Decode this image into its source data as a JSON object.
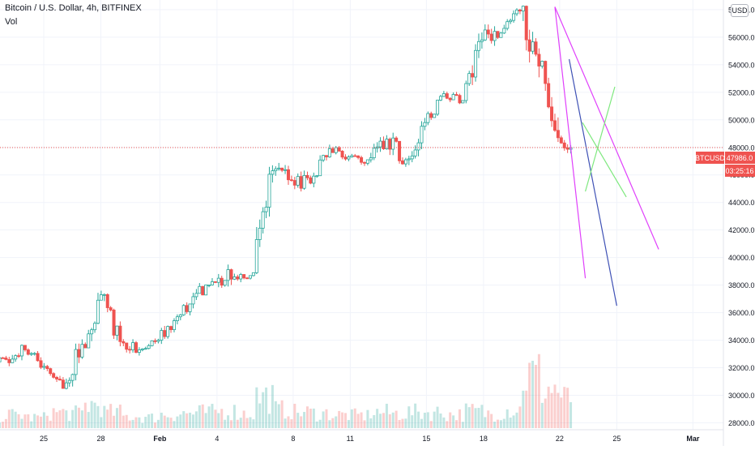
{
  "header": {
    "title": "Bitcoin / U.S. Dollar, 4h, BITFINEX",
    "indicator": "Vol",
    "currency_button": "USD"
  },
  "price_tag": {
    "symbol": "BTCUSD",
    "price": "47986.0",
    "countdown": "03:25:16",
    "color": "#ef5350"
  },
  "colors": {
    "up": "#26a69a",
    "down": "#ef5350",
    "grid": "#f0f3fa",
    "axis_text": "#131722"
  },
  "chart_data": {
    "type": "candlestick",
    "title": "Bitcoin / U.S. Dollar, 4h, BITFINEX",
    "ylim": [
      27500,
      58700
    ],
    "y_ticks": [
      28000,
      30000,
      32000,
      34000,
      36000,
      38000,
      40000,
      42000,
      44000,
      46000,
      48000,
      50000,
      52000,
      54000,
      56000,
      58000
    ],
    "y_tick_labels": [
      "28000.0",
      "30000.0",
      "32000.0",
      "34000.0",
      "36000.0",
      "38000.0",
      "40000.0",
      "42000.0",
      "44000.0",
      "46000.0",
      "48000.0",
      "50000.0",
      "52000.0",
      "54000.0",
      "56000.0",
      "58000.0"
    ],
    "x_range": [
      0,
      43.5
    ],
    "x_ticks": [
      {
        "day": 3.9,
        "label": "25"
      },
      {
        "day": 6.9,
        "label": "28"
      },
      {
        "day": 10.0,
        "label": "Feb"
      },
      {
        "day": 13.0,
        "label": "4"
      },
      {
        "day": 17.0,
        "label": "8"
      },
      {
        "day": 20.0,
        "label": "11"
      },
      {
        "day": 24.0,
        "label": "15"
      },
      {
        "day": 27.0,
        "label": "18"
      },
      {
        "day": 31.0,
        "label": "22"
      },
      {
        "day": 34.0,
        "label": "25"
      },
      {
        "day": 38.0,
        "label": "Mar"
      }
    ],
    "grid": true,
    "last_price": 47986.0,
    "candles_daily_ohlc": [
      [
        31500,
        32700,
        31600,
        32300
      ],
      [
        32300,
        33300,
        31800,
        32600
      ],
      [
        32600,
        34600,
        31700,
        33300
      ],
      [
        33300,
        33600,
        31300,
        32100
      ],
      [
        32100,
        32400,
        30200,
        30500
      ],
      [
        30500,
        34300,
        30300,
        33700
      ],
      [
        33700,
        38500,
        33500,
        37300
      ],
      [
        37300,
        37400,
        33400,
        33900
      ],
      [
        33900,
        34800,
        32600,
        33300
      ],
      [
        33300,
        34200,
        32800,
        34000
      ],
      [
        34000,
        36200,
        33300,
        35700
      ],
      [
        35700,
        37900,
        35000,
        37400
      ],
      [
        37400,
        38600,
        36300,
        38200
      ],
      [
        38200,
        41000,
        37200,
        38600
      ],
      [
        38600,
        39400,
        37400,
        38900
      ],
      [
        38900,
        46700,
        38800,
        46300
      ],
      [
        46300,
        48200,
        45000,
        45600
      ],
      [
        45600,
        47200,
        43800,
        45400
      ],
      [
        45400,
        48200,
        45100,
        47900
      ],
      [
        47900,
        48100,
        46300,
        47300
      ],
      [
        47300,
        48300,
        46500,
        47100
      ],
      [
        47100,
        49500,
        46200,
        48600
      ],
      [
        48600,
        49300,
        45600,
        47100
      ],
      [
        47100,
        50700,
        46700,
        49800
      ],
      [
        49800,
        52100,
        49200,
        51900
      ],
      [
        51900,
        52500,
        50900,
        51400
      ],
      [
        51400,
        56800,
        51200,
        55800
      ],
      [
        55800,
        57500,
        53600,
        56300
      ],
      [
        56300,
        58400,
        55700,
        57900
      ],
      [
        57900,
        58300,
        47600,
        53900
      ],
      [
        53900,
        54300,
        45000,
        48700
      ],
      [
        48700,
        49700,
        46800,
        47986
      ]
    ],
    "volume_relative": [
      0.2,
      0.22,
      0.25,
      0.2,
      0.3,
      0.28,
      0.45,
      0.3,
      0.22,
      0.2,
      0.26,
      0.28,
      0.3,
      0.32,
      0.28,
      0.6,
      0.35,
      0.3,
      0.28,
      0.25,
      0.24,
      0.3,
      0.28,
      0.3,
      0.3,
      0.26,
      0.32,
      0.28,
      0.35,
      1.0,
      0.75,
      0.55
    ],
    "trendlines": [
      {
        "color": "#e040fb",
        "points": [
          [
            30.75,
            58200
          ],
          [
            36.2,
            40600
          ]
        ]
      },
      {
        "color": "#e040fb",
        "points": [
          [
            30.75,
            58200
          ],
          [
            32.35,
            38500
          ]
        ]
      },
      {
        "color": "#3f51b5",
        "points": [
          [
            31.5,
            54400
          ],
          [
            34.0,
            36500
          ]
        ]
      },
      {
        "color": "#7ee87e",
        "points": [
          [
            32.35,
            44800
          ],
          [
            33.9,
            52400
          ]
        ]
      },
      {
        "color": "#7ee87e",
        "points": [
          [
            32.2,
            49800
          ],
          [
            34.5,
            44400
          ]
        ]
      }
    ]
  }
}
